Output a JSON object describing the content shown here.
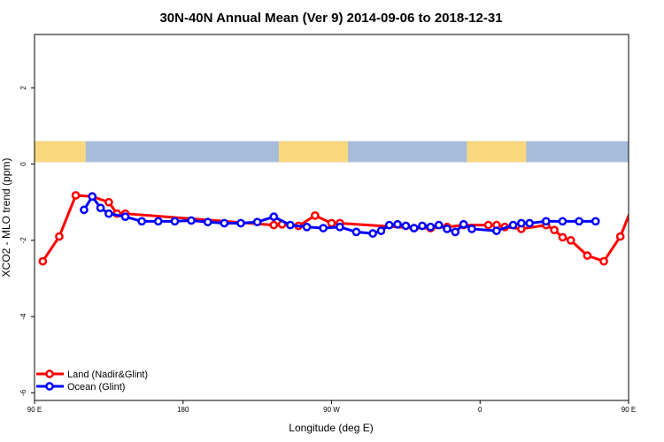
{
  "chart_data": {
    "type": "line",
    "title": "30N-40N Annual Mean (Ver 9)   2014-09-06 to 2018-12-31",
    "xlabel": "Longitude (deg E)",
    "ylabel": "XCO2 - MLO trend (ppm)",
    "xlim": [
      90,
      450
    ],
    "ylim": [
      -6.2,
      3.4
    ],
    "grid": false,
    "legend_position": "bottom-left",
    "x_ticks": [
      {
        "value": 90,
        "label": "90 E"
      },
      {
        "value": 180,
        "label": "180"
      },
      {
        "value": 270,
        "label": "90 W"
      },
      {
        "value": 360,
        "label": "0"
      },
      {
        "value": 450,
        "label": "90 E"
      },
      {
        "value": 540,
        "label": "180"
      }
    ],
    "y_ticks": [
      {
        "value": 2,
        "label": "2"
      },
      {
        "value": 0,
        "label": "0"
      },
      {
        "value": -2,
        "label": "-2"
      },
      {
        "value": -4,
        "label": "-4"
      },
      {
        "value": -6,
        "label": "-6"
      }
    ],
    "land_band": {
      "y_top": 0.6,
      "y_bottom": 0.05,
      "ocean_color": "#a7bcdb",
      "land_color": "#f9d77e"
    },
    "series": [
      {
        "name": "Land (Nadir&Glint)",
        "color": "#ff0000",
        "x": [
          95,
          105,
          115,
          125,
          135,
          140,
          145,
          235,
          240,
          250,
          260,
          270,
          275,
          320,
          330,
          340,
          350,
          365,
          370,
          375,
          385,
          400,
          405,
          410,
          415,
          425,
          435,
          445,
          455,
          465,
          470,
          475,
          485
        ],
        "values": [
          -2.55,
          -1.9,
          -0.82,
          -0.85,
          -1.0,
          -1.3,
          -1.3,
          -1.6,
          -1.58,
          -1.62,
          -1.35,
          -1.55,
          -1.55,
          -1.68,
          -1.68,
          -1.65,
          -1.6,
          -1.6,
          -1.6,
          -1.65,
          -1.7,
          -1.6,
          -1.73,
          -1.92,
          -2.0,
          -2.4,
          -2.55,
          -1.9,
          -0.82,
          -0.85,
          -1.0,
          -1.3,
          -1.3
        ]
      },
      {
        "name": "Ocean (Glint)",
        "color": "#0000ff",
        "x": [
          120,
          125,
          130,
          135,
          145,
          155,
          165,
          175,
          185,
          195,
          205,
          215,
          225,
          235,
          245,
          255,
          265,
          275,
          285,
          295,
          300,
          305,
          310,
          315,
          320,
          325,
          330,
          335,
          340,
          345,
          350,
          355,
          370,
          380,
          385,
          390,
          400,
          410,
          420,
          430
        ],
        "values": [
          -1.2,
          -0.85,
          -1.15,
          -1.3,
          -1.38,
          -1.5,
          -1.5,
          -1.5,
          -1.48,
          -1.52,
          -1.55,
          -1.55,
          -1.52,
          -1.38,
          -1.6,
          -1.65,
          -1.68,
          -1.65,
          -1.78,
          -1.82,
          -1.75,
          -1.6,
          -1.58,
          -1.62,
          -1.68,
          -1.62,
          -1.65,
          -1.6,
          -1.7,
          -1.78,
          -1.58,
          -1.7,
          -1.75,
          -1.6,
          -1.55,
          -1.55,
          -1.5,
          -1.5,
          -1.5,
          -1.5
        ]
      }
    ]
  }
}
